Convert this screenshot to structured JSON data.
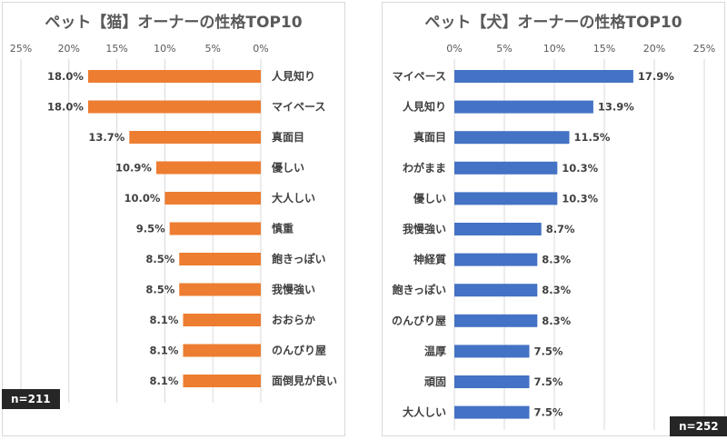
{
  "chart_data": [
    {
      "type": "bar",
      "orientation": "horizontal",
      "title": "ペット【猫】オーナーの性格TOP10",
      "axis_direction": "reversed",
      "xlim": [
        0,
        25
      ],
      "ticks": [
        "25%",
        "20%",
        "15%",
        "10%",
        "5%",
        "0%"
      ],
      "categories": [
        "人見知り",
        "マイペース",
        "真面目",
        "優しい",
        "大人しい",
        "慎重",
        "飽きっぽい",
        "我慢強い",
        "おおらか",
        "のんびり屋",
        "面倒見が良い"
      ],
      "values": [
        18.0,
        18.0,
        13.7,
        10.9,
        10.0,
        9.5,
        8.5,
        8.5,
        8.1,
        8.1,
        8.1
      ],
      "value_labels": [
        "18.0%",
        "18.0%",
        "13.7%",
        "10.9%",
        "10.0%",
        "9.5%",
        "8.5%",
        "8.5%",
        "8.1%",
        "8.1%",
        "8.1%"
      ],
      "color": "#ED7D31",
      "grid": true,
      "note": "n=211"
    },
    {
      "type": "bar",
      "orientation": "horizontal",
      "title": "ペット【犬】オーナーの性格TOP10",
      "xlim": [
        0,
        25
      ],
      "ticks": [
        "0%",
        "5%",
        "10%",
        "15%",
        "20%",
        "25%"
      ],
      "categories": [
        "マイペース",
        "人見知り",
        "真面目",
        "わがまま",
        "優しい",
        "我慢強い",
        "神経質",
        "飽きっぽい",
        "のんびり屋",
        "温厚",
        "頑固",
        "大人しい"
      ],
      "values": [
        17.9,
        13.9,
        11.5,
        10.3,
        10.3,
        8.7,
        8.3,
        8.3,
        8.3,
        7.5,
        7.5,
        7.5
      ],
      "value_labels": [
        "17.9%",
        "13.9%",
        "11.5%",
        "10.3%",
        "10.3%",
        "8.7%",
        "8.3%",
        "8.3%",
        "8.3%",
        "7.5%",
        "7.5%",
        "7.5%"
      ],
      "color": "#4472C4",
      "grid": true,
      "note": "n=252"
    }
  ]
}
